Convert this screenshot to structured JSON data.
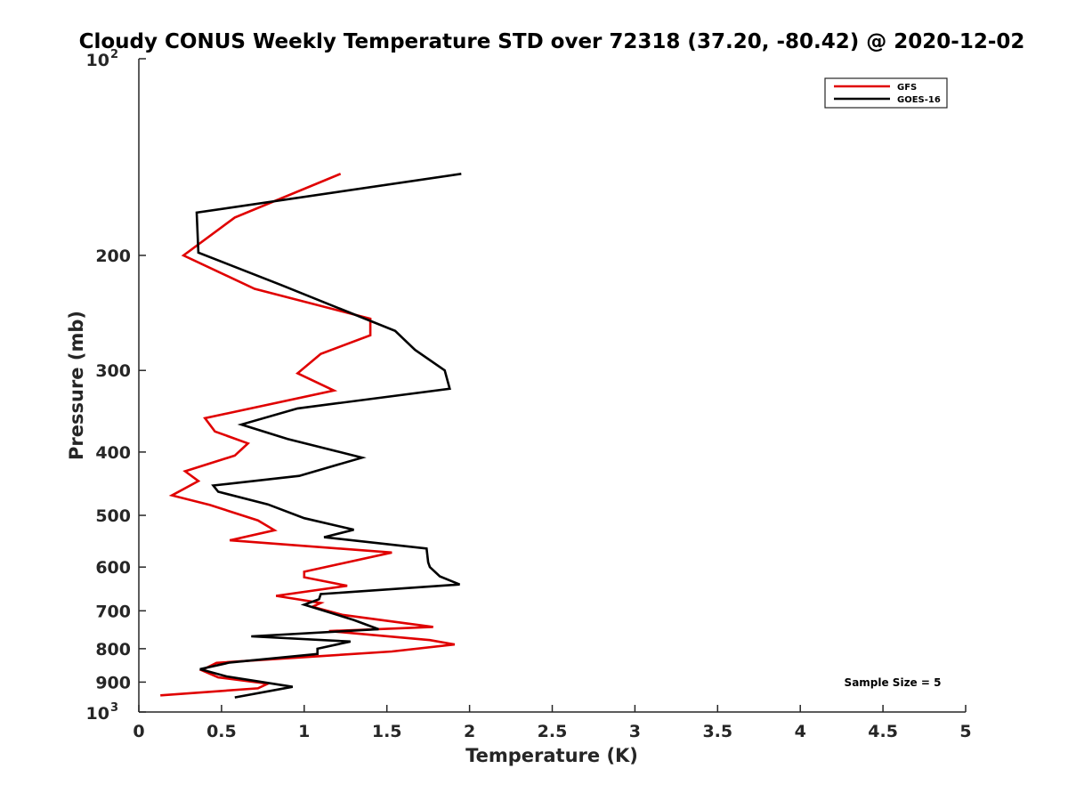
{
  "chart_data": {
    "type": "line",
    "title": "Cloudy CONUS Weekly Temperature STD over 72318 (37.20, -80.42) @ 2020-12-02",
    "xlabel": "Temperature (K)",
    "ylabel": "Pressure (mb)",
    "xlim": [
      0,
      5
    ],
    "ylim": [
      100,
      1000
    ],
    "y_scale": "log",
    "y_reversed": true,
    "grid": false,
    "legend_position": "top-right",
    "x_ticks": [
      0,
      0.5,
      1,
      1.5,
      2,
      2.5,
      3,
      3.5,
      4,
      4.5,
      5
    ],
    "x_tick_labels": [
      "0",
      "0.5",
      "1",
      "1.5",
      "2",
      "2.5",
      "3",
      "3.5",
      "4",
      "4.5",
      "5"
    ],
    "y_ticks": [
      {
        "value": 100,
        "base": "10",
        "exp": "2"
      },
      {
        "value": 200,
        "label": "200"
      },
      {
        "value": 300,
        "label": "300"
      },
      {
        "value": 400,
        "label": "400"
      },
      {
        "value": 500,
        "label": "500"
      },
      {
        "value": 600,
        "label": "600"
      },
      {
        "value": 700,
        "label": "700"
      },
      {
        "value": 800,
        "label": "800"
      },
      {
        "value": 900,
        "label": "900"
      },
      {
        "value": 1000,
        "base": "10",
        "exp": "3"
      }
    ],
    "annotation": "Sample Size = 5",
    "series": [
      {
        "name": "GFS",
        "color": "#e00000",
        "points": [
          [
            1.22,
            150
          ],
          [
            0.58,
            175
          ],
          [
            0.27,
            200
          ],
          [
            0.7,
            225
          ],
          [
            1.4,
            250
          ],
          [
            1.4,
            265
          ],
          [
            1.1,
            283
          ],
          [
            0.96,
            303
          ],
          [
            1.18,
            322
          ],
          [
            0.4,
            355
          ],
          [
            0.46,
            372
          ],
          [
            0.66,
            388
          ],
          [
            0.58,
            405
          ],
          [
            0.28,
            428
          ],
          [
            0.36,
            443
          ],
          [
            0.2,
            466
          ],
          [
            0.43,
            482
          ],
          [
            0.72,
            509
          ],
          [
            0.82,
            527
          ],
          [
            0.55,
            546
          ],
          [
            1.53,
            570
          ],
          [
            1.0,
            610
          ],
          [
            1.0,
            622
          ],
          [
            1.26,
            641
          ],
          [
            0.83,
            664
          ],
          [
            1.1,
            681
          ],
          [
            1.05,
            690
          ],
          [
            1.23,
            710
          ],
          [
            1.78,
            741
          ],
          [
            1.15,
            752
          ],
          [
            1.76,
            776
          ],
          [
            1.91,
            788
          ],
          [
            1.53,
            808
          ],
          [
            0.47,
            841
          ],
          [
            0.38,
            863
          ],
          [
            0.48,
            885
          ],
          [
            0.78,
            905
          ],
          [
            0.72,
            920
          ],
          [
            0.13,
            943
          ]
        ]
      },
      {
        "name": "GOES-16",
        "color": "#000000",
        "points": [
          [
            1.95,
            150
          ],
          [
            0.35,
            172
          ],
          [
            0.36,
            198
          ],
          [
            0.86,
            222
          ],
          [
            1.55,
            261
          ],
          [
            1.67,
            279
          ],
          [
            1.85,
            300
          ],
          [
            1.88,
            320
          ],
          [
            0.96,
            343
          ],
          [
            0.62,
            363
          ],
          [
            0.9,
            382
          ],
          [
            1.35,
            408
          ],
          [
            0.97,
            435
          ],
          [
            0.45,
            450
          ],
          [
            0.48,
            460
          ],
          [
            0.78,
            481
          ],
          [
            1.0,
            505
          ],
          [
            1.3,
            526
          ],
          [
            1.12,
            540
          ],
          [
            1.74,
            562
          ],
          [
            1.75,
            590
          ],
          [
            1.76,
            600
          ],
          [
            1.82,
            620
          ],
          [
            1.94,
            638
          ],
          [
            1.1,
            660
          ],
          [
            1.09,
            672
          ],
          [
            1.0,
            685
          ],
          [
            1.3,
            723
          ],
          [
            1.45,
            747
          ],
          [
            0.68,
            766
          ],
          [
            1.28,
            780
          ],
          [
            1.08,
            800
          ],
          [
            1.08,
            815
          ],
          [
            0.55,
            840
          ],
          [
            0.37,
            860
          ],
          [
            0.53,
            882
          ],
          [
            0.93,
            915
          ],
          [
            0.58,
            950
          ]
        ]
      }
    ]
  }
}
